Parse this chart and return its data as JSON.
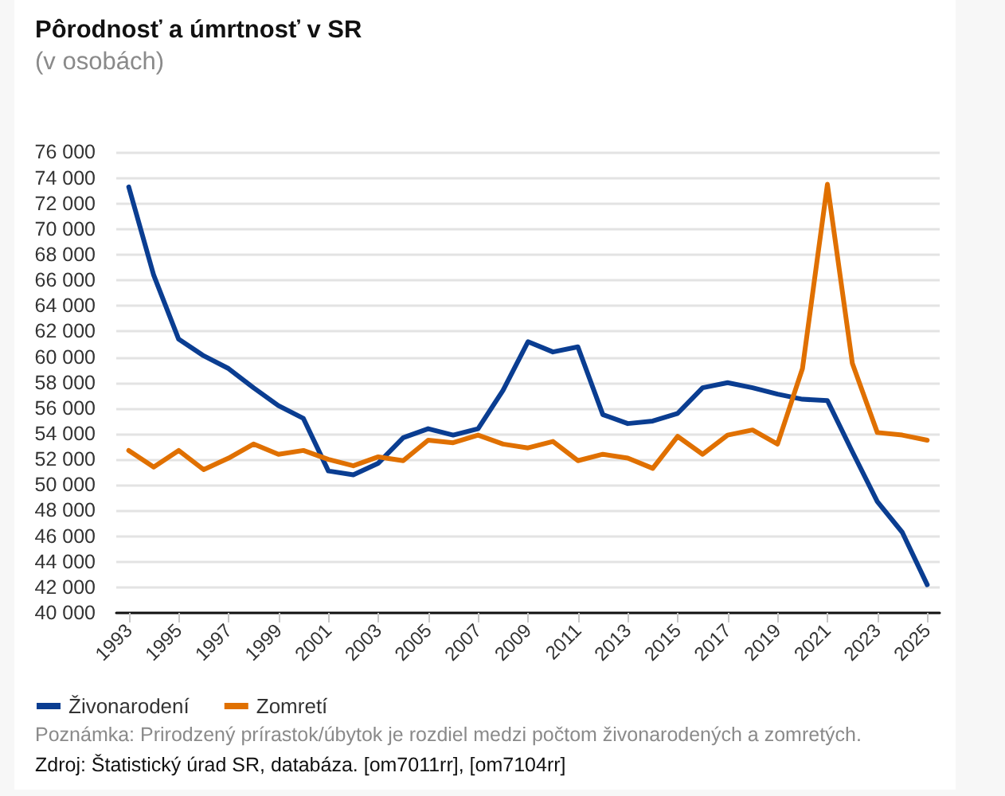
{
  "chart_data": {
    "type": "line",
    "title": "Pôrodnosť a úmrtnosť v SR",
    "subtitle": "(v osobách)",
    "categories": [
      "1993",
      null,
      "1995",
      null,
      "1997",
      null,
      "1999",
      null,
      "2001",
      null,
      "2003",
      null,
      "2005",
      null,
      "2007",
      null,
      "2009",
      null,
      "2011",
      null,
      "2013",
      null,
      "2015",
      null,
      "2017",
      null,
      "2019",
      null,
      "2021",
      null,
      "2023",
      null,
      "2025"
    ],
    "series": [
      {
        "name": "Živonarodení",
        "color": "#0a3d91",
        "values": [
          73300,
          66400,
          61400,
          60100,
          59100,
          57600,
          56200,
          55200,
          51100,
          50800,
          51700,
          53700,
          54400,
          53900,
          54400,
          57400,
          61200,
          60400,
          60800,
          55500,
          54800,
          55000,
          55600,
          57600,
          58000,
          57600,
          57100,
          56700,
          56600,
          52600,
          48700,
          46300,
          42200
        ]
      },
      {
        "name": "Zomretí",
        "color": "#e07000",
        "values": [
          52700,
          51400,
          52700,
          51200,
          52100,
          53200,
          52400,
          52700,
          52000,
          51500,
          52200,
          51900,
          53500,
          53300,
          53900,
          53200,
          52900,
          53400,
          51900,
          52400,
          52100,
          51300,
          53800,
          52400,
          53900,
          54300,
          53200,
          59100,
          73500,
          59500,
          54100,
          53900,
          53500
        ]
      }
    ],
    "ylim": [
      40000,
      76000
    ],
    "yticks": [
      {
        "value": 40000,
        "label": "40 000"
      },
      {
        "value": 42000,
        "label": "42 000"
      },
      {
        "value": 44000,
        "label": "44 000"
      },
      {
        "value": 46000,
        "label": "46 000"
      },
      {
        "value": 48000,
        "label": "48 000"
      },
      {
        "value": 50000,
        "label": "50 000"
      },
      {
        "value": 52000,
        "label": "52 000"
      },
      {
        "value": 54000,
        "label": "54 000"
      },
      {
        "value": 56000,
        "label": "56 000"
      },
      {
        "value": 58000,
        "label": "58 000"
      },
      {
        "value": 60000,
        "label": "60 000"
      },
      {
        "value": 62000,
        "label": "62 000"
      },
      {
        "value": 64000,
        "label": "64 000"
      },
      {
        "value": 66000,
        "label": "66 000"
      },
      {
        "value": 68000,
        "label": "68 000"
      },
      {
        "value": 70000,
        "label": "70 000"
      },
      {
        "value": 72000,
        "label": "72 000"
      },
      {
        "value": 74000,
        "label": "74 000"
      },
      {
        "value": 76000,
        "label": "76 000"
      }
    ],
    "grid": "y",
    "legend": "bottom left",
    "marker": "none",
    "line_style": "solid",
    "annotations": [
      "Poznámka: Prirodzený prírastok/úbytok je rozdiel medzi počtom živonarodených a zomretých.",
      "Zdroj: Štatistický úrad SR, databáza. [om7011rr], [om7104rr]"
    ]
  }
}
